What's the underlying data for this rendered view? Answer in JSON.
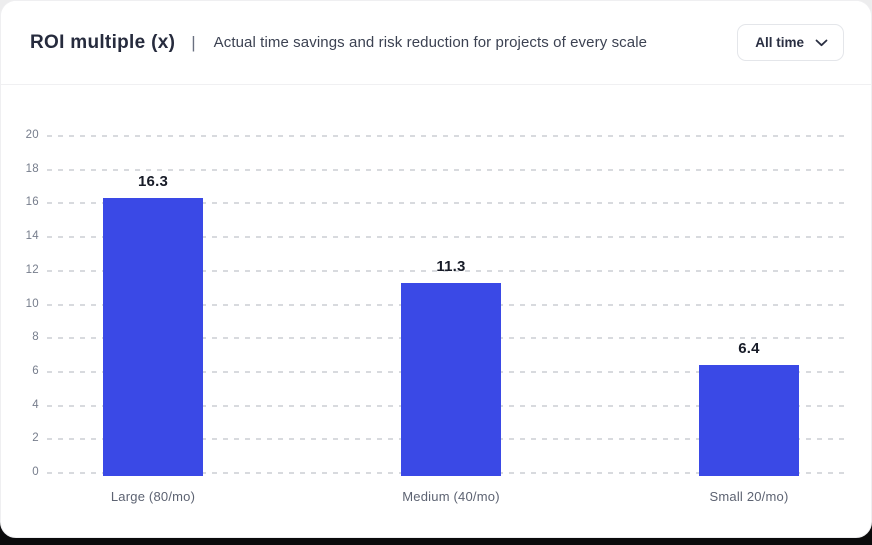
{
  "header": {
    "title": "ROI multiple (x)",
    "divider": "|",
    "subtitle": "Actual time savings and risk reduction for projects of every scale",
    "time_filter": {
      "label": "All time",
      "icon": "chevron-down-icon"
    }
  },
  "colors": {
    "bar": "#3a49e6",
    "grid": "#d8dade",
    "title_text": "#262b3d",
    "subtitle_text": "#3c4252",
    "axis_text": "#767d8c",
    "value_text": "#181c28",
    "card_bg": "#ffffff"
  },
  "chart_data": {
    "type": "bar",
    "categories": [
      "Large (80/mo)",
      "Medium (40/mo)",
      "Small 20/mo)"
    ],
    "values": [
      16.3,
      11.3,
      6.4
    ],
    "value_labels": [
      "16.3",
      "11.3",
      "6.4"
    ],
    "title": "ROI multiple (x)",
    "subtitle": "Actual time savings and risk reduction for projects of every scale",
    "xlabel": "",
    "ylabel": "",
    "ylim": [
      0,
      20
    ],
    "ytick_step": 2,
    "grid": "dashed-horizontal",
    "legend": "none",
    "bar_color": "#3a49e6"
  }
}
